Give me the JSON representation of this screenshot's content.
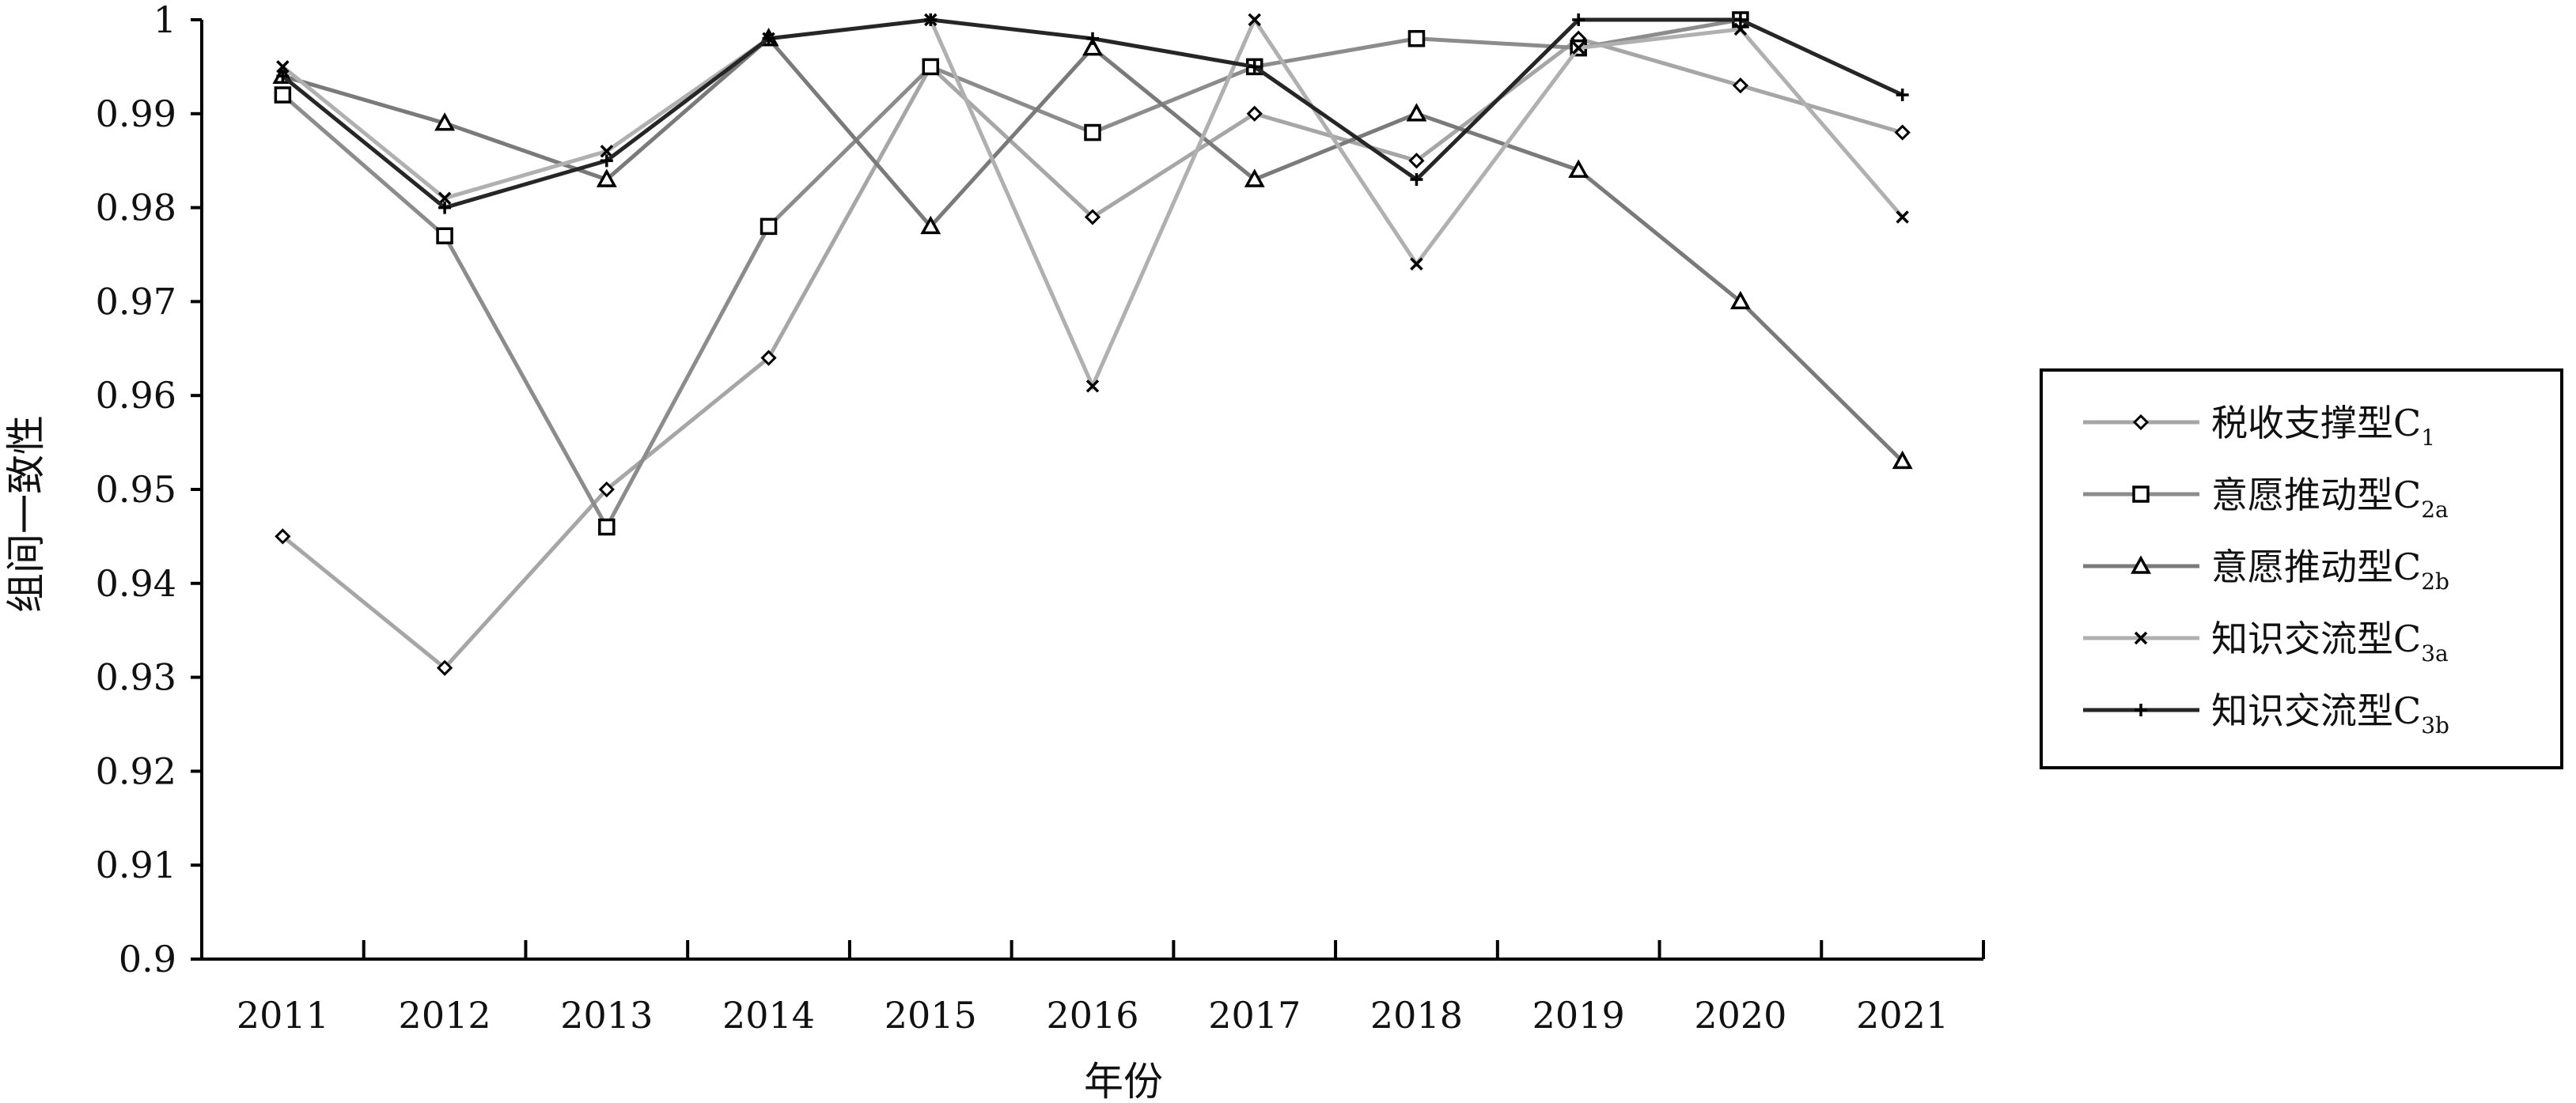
{
  "chart_data": {
    "type": "line",
    "title": "",
    "xlabel": "年份",
    "ylabel": "组间一致性",
    "categories": [
      "2011",
      "2012",
      "2013",
      "2014",
      "2015",
      "2016",
      "2017",
      "2018",
      "2019",
      "2020",
      "2021"
    ],
    "ylim": [
      0.9,
      1.0
    ],
    "yticks": [
      0.9,
      0.91,
      0.92,
      0.93,
      0.94,
      0.95,
      0.96,
      0.97,
      0.98,
      0.99,
      1
    ],
    "ytick_labels": [
      "0.9",
      "0.91",
      "0.92",
      "0.93",
      "0.94",
      "0.95",
      "0.96",
      "0.97",
      "0.98",
      "0.99",
      "1"
    ],
    "grid": false,
    "legend_position": "right",
    "series": [
      {
        "name": "税收支撑型",
        "sub": "1",
        "marker": "diamond",
        "color": "#a6a6a6",
        "values": [
          0.945,
          0.931,
          0.95,
          0.964,
          0.995,
          0.979,
          0.99,
          0.985,
          0.998,
          0.993,
          0.988
        ]
      },
      {
        "name": "意愿推动型",
        "sub": "2a",
        "marker": "square",
        "color": "#8c8c8c",
        "values": [
          0.992,
          0.977,
          0.946,
          0.978,
          0.995,
          0.988,
          0.995,
          0.998,
          0.997,
          1.0,
          null
        ]
      },
      {
        "name": "意愿推动型",
        "sub": "2b",
        "marker": "triangle",
        "color": "#7a7a7a",
        "values": [
          0.994,
          0.989,
          0.983,
          0.998,
          0.978,
          0.997,
          0.983,
          0.99,
          0.984,
          0.97,
          0.953
        ]
      },
      {
        "name": "知识交流型",
        "sub": "3a",
        "marker": "x",
        "color": "#b0b0b0",
        "values": [
          0.995,
          0.981,
          0.986,
          0.998,
          1.0,
          0.961,
          1.0,
          0.974,
          0.997,
          0.999,
          0.979
        ]
      },
      {
        "name": "知识交流型",
        "sub": "3b",
        "marker": "plus",
        "color": "#262626",
        "values": [
          0.994,
          0.98,
          0.985,
          0.998,
          1.0,
          0.998,
          0.995,
          0.983,
          1.0,
          1.0,
          0.992
        ]
      }
    ]
  }
}
